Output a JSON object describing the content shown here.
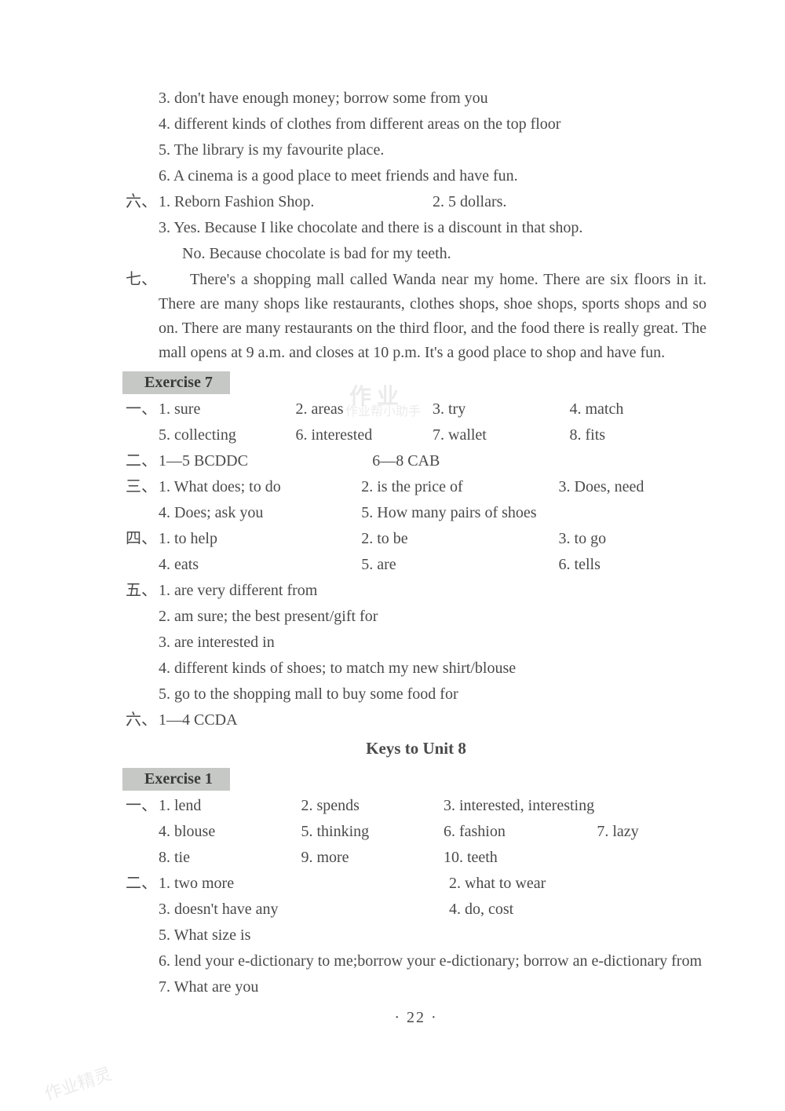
{
  "top_lines": [
    "3. don't have enough money; borrow some from you",
    "4. different kinds of clothes from different areas on the top floor",
    "5. The library is my favourite place.",
    "6. A cinema is a good place to meet friends and have fun."
  ],
  "section_six": {
    "label": "六、",
    "items": [
      [
        "1. Reborn Fashion Shop.",
        "2. 5 dollars."
      ],
      [
        "3. Yes. Because I like chocolate and there is a discount in that shop."
      ],
      [
        "No. Because chocolate is bad for my teeth."
      ]
    ]
  },
  "section_seven": {
    "label": "七、",
    "paragraph": "There's a shopping mall called Wanda near my home. There are six floors in it. There are many shops like restaurants, clothes shops, shoe shops, sports shops and so on. There are many restaurants on the third floor, and the food there is really great. The mall opens at 9 a.m. and closes at 10 p.m. It's a good place to shop and have fun."
  },
  "exercise7": {
    "header": "Exercise 7",
    "q1": {
      "label": "一、",
      "items_r1": [
        "1. sure",
        "2. areas",
        "3. try",
        "4. match"
      ],
      "items_r2": [
        "5. collecting",
        "6. interested",
        "7. wallet",
        "8. fits"
      ]
    },
    "q2": {
      "label": "二、",
      "items": [
        "1—5 BCDDC",
        "6—8 CAB"
      ]
    },
    "q3": {
      "label": "三、",
      "r1": [
        "1. What does; to do",
        "2. is the price of",
        "3. Does, need"
      ],
      "r2": [
        "4. Does; ask you",
        "5. How many pairs of shoes"
      ]
    },
    "q4": {
      "label": "四、",
      "r1": [
        "1. to help",
        "2. to be",
        "3. to go"
      ],
      "r2": [
        "4. eats",
        "5. are",
        "6. tells"
      ]
    },
    "q5": {
      "label": "五、",
      "items": [
        "1. are very different from",
        "2. am sure; the best present/gift for",
        "3. are interested in",
        "4. different kinds of shoes; to match my new shirt/blouse",
        "5. go to the shopping mall to buy some food for"
      ]
    },
    "q6": {
      "label": "六、",
      "text": "1—4 CCDA"
    }
  },
  "unit8_title": "Keys to Unit 8",
  "exercise1": {
    "header": "Exercise 1",
    "q1": {
      "label": "一、",
      "r1": [
        "1. lend",
        "2. spends",
        "3. interested, interesting"
      ],
      "r2": [
        "4. blouse",
        "5. thinking",
        "6. fashion",
        "7. lazy"
      ],
      "r3": [
        "8. tie",
        "9. more",
        "10. teeth"
      ]
    },
    "q2": {
      "label": "二、",
      "r1": [
        "1. two more",
        "2. what to wear"
      ],
      "r2": [
        "3. doesn't have any",
        "4. do, cost"
      ],
      "items_single": [
        "5. What size is",
        "6. lend your e-dictionary to me;borrow your e-dictionary; borrow an e-dictionary from",
        "7. What are you"
      ]
    }
  },
  "page_number": "· 22 ·",
  "watermarks": {
    "wm1": "作 业",
    "wm2": "作业帮小助手",
    "wm3": "作业精灵"
  },
  "colors": {
    "text": "#4a4a4a",
    "bg": "#ffffff",
    "header_bg": "#c5c8c5"
  },
  "fontsize": {
    "body": 20,
    "title": 21
  }
}
